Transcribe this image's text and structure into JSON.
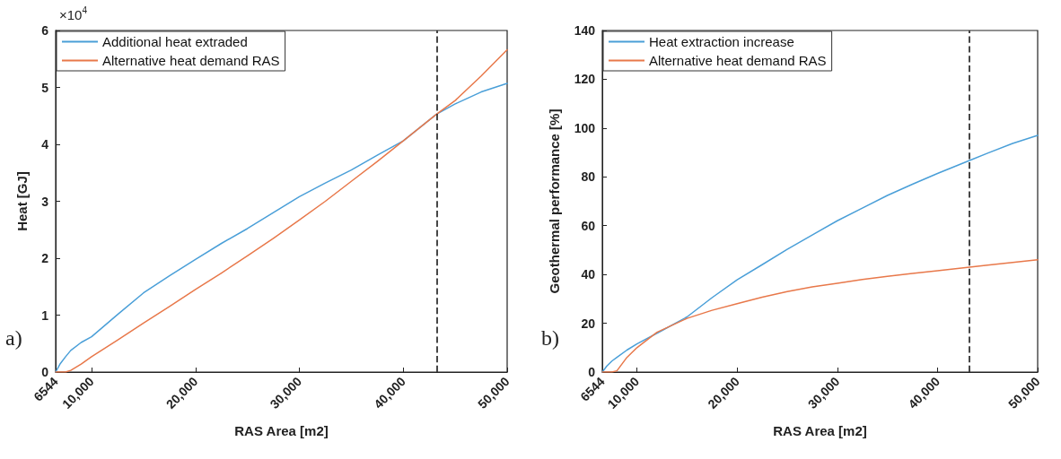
{
  "chart_data": [
    {
      "type": "line",
      "xlabel": "RAS Area [m2]",
      "ylabel": "Heat [GJ]",
      "annotations": [
        "a)",
        "×10$^{4}$"
      ],
      "xlim": [
        6544,
        50000
      ],
      "xticks": [
        6544,
        {
          "value": 10000,
          "label": "10,000"
        },
        {
          "value": 20000,
          "label": "20,000"
        },
        {
          "value": 30000,
          "label": "30,000"
        },
        {
          "value": 40000,
          "label": "40,000"
        },
        {
          "value": 50000,
          "label": "50,000"
        }
      ],
      "ylim": [
        0,
        6
      ],
      "yticks": [
        0,
        1,
        2,
        3,
        4,
        5,
        6
      ],
      "grid": false,
      "legend": "top left",
      "line_style": "solid",
      "marker": "none",
      "ref_lines": [
        {
          "axis": "x",
          "value": 43200,
          "color": "#333333",
          "line_style": "dashed"
        }
      ],
      "series": [
        {
          "name": "Additional heat extraded",
          "color": "#4a9fd8",
          "x": [
            6544,
            7000,
            7500,
            8000,
            9000,
            10000,
            12500,
            15000,
            17500,
            20000,
            22500,
            25000,
            27500,
            30000,
            32500,
            35000,
            37500,
            40000,
            43200,
            45000,
            47500,
            50000
          ],
          "values": [
            0,
            0.15,
            0.27,
            0.38,
            0.52,
            0.62,
            1.01,
            1.39,
            1.69,
            1.98,
            2.26,
            2.52,
            2.8,
            3.08,
            3.32,
            3.55,
            3.81,
            4.06,
            4.53,
            4.71,
            4.92,
            5.07
          ]
        },
        {
          "name": "Alternative heat demand RAS",
          "color": "#e8784a",
          "x": [
            6544,
            7000,
            7500,
            8000,
            9000,
            10000,
            12500,
            15000,
            17500,
            20000,
            22500,
            25000,
            27500,
            30000,
            32500,
            35000,
            37500,
            40000,
            43200,
            45000,
            47500,
            50000
          ],
          "values": [
            0,
            0,
            0,
            0.03,
            0.14,
            0.27,
            0.56,
            0.86,
            1.15,
            1.45,
            1.74,
            2.04,
            2.35,
            2.67,
            3.0,
            3.35,
            3.7,
            4.06,
            4.53,
            4.77,
            5.2,
            5.66
          ]
        }
      ]
    },
    {
      "type": "line",
      "xlabel": "RAS Area [m2]",
      "ylabel": "Geothermal performance [%]",
      "annotations": [
        "b)"
      ],
      "xlim": [
        6544,
        50000
      ],
      "xticks": [
        6544,
        {
          "value": 10000,
          "label": "10,000"
        },
        {
          "value": 20000,
          "label": "20,000"
        },
        {
          "value": 30000,
          "label": "30,000"
        },
        {
          "value": 40000,
          "label": "40,000"
        },
        {
          "value": 50000,
          "label": "50,000"
        }
      ],
      "ylim": [
        0,
        140
      ],
      "yticks": [
        0,
        20,
        40,
        60,
        80,
        100,
        120,
        140
      ],
      "grid": false,
      "legend": "top left",
      "line_style": "solid",
      "marker": "none",
      "ref_lines": [
        {
          "axis": "x",
          "value": 43200,
          "color": "#333333",
          "line_style": "dashed"
        }
      ],
      "series": [
        {
          "name": "Heat extraction increase",
          "color": "#4a9fd8",
          "x": [
            6544,
            7000,
            7500,
            8000,
            9000,
            10000,
            12500,
            15000,
            17500,
            20000,
            22500,
            25000,
            27500,
            30000,
            32500,
            35000,
            37500,
            40000,
            43200,
            45000,
            47500,
            50000
          ],
          "values": [
            0,
            2.5,
            4.5,
            6,
            9,
            11.5,
            17,
            22.6,
            30.5,
            37.8,
            44,
            50.3,
            56.2,
            62,
            67.2,
            72.4,
            77,
            81.4,
            86.7,
            89.7,
            93.7,
            97
          ]
        },
        {
          "name": "Alternative heat demand RAS",
          "color": "#e8784a",
          "x": [
            6544,
            7000,
            7500,
            8000,
            9000,
            10000,
            12000,
            15000,
            17500,
            20000,
            22500,
            25000,
            27500,
            30000,
            32500,
            35000,
            37500,
            40000,
            43200,
            45000,
            47500,
            50000
          ],
          "values": [
            0,
            0,
            0,
            0.5,
            6,
            10,
            16.3,
            22,
            25.3,
            28,
            30.7,
            33,
            34.9,
            36.4,
            37.9,
            39.2,
            40.4,
            41.5,
            43,
            43.8,
            44.9,
            46
          ]
        }
      ]
    }
  ]
}
